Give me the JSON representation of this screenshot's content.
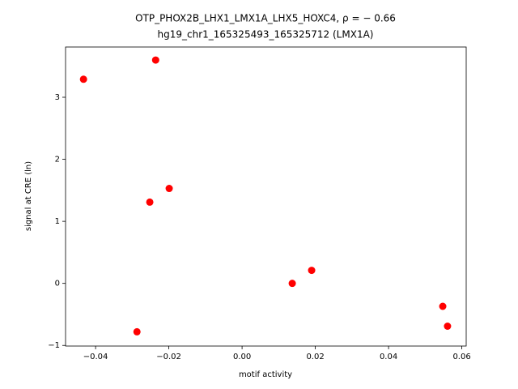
{
  "chart_data": {
    "type": "scatter",
    "title": "OTP_PHOX2B_LHX1_LMX1A_LHX5_HOXC4, ρ = − 0.66",
    "subtitle": "hg19_chr1_165325493_165325712 (LMX1A)",
    "x_label": "motif activity",
    "y_label": "signal at CRE (ln)",
    "color": "#ff0000",
    "x": [
      -0.0433,
      -0.0236,
      -0.0252,
      -0.0199,
      -0.0287,
      0.0137,
      0.019,
      0.0548,
      0.0561
    ],
    "values": [
      3.29,
      3.6,
      1.31,
      1.53,
      -0.78,
      0.0,
      0.21,
      -0.37,
      -0.69
    ],
    "xlim": [
      -0.0482,
      0.0612
    ],
    "ylim": [
      -1.01,
      3.81
    ],
    "xticks": [
      {
        "value": -0.04,
        "label": "−0.04"
      },
      {
        "value": -0.02,
        "label": "−0.02"
      },
      {
        "value": 0,
        "label": "0.00"
      },
      {
        "value": 0.02,
        "label": "0.02"
      },
      {
        "value": 0.04,
        "label": "0.04"
      },
      {
        "value": 0.06,
        "label": "0.06"
      }
    ],
    "yticks": [
      {
        "value": -1,
        "label": "−1"
      },
      0,
      1,
      2,
      3
    ]
  }
}
